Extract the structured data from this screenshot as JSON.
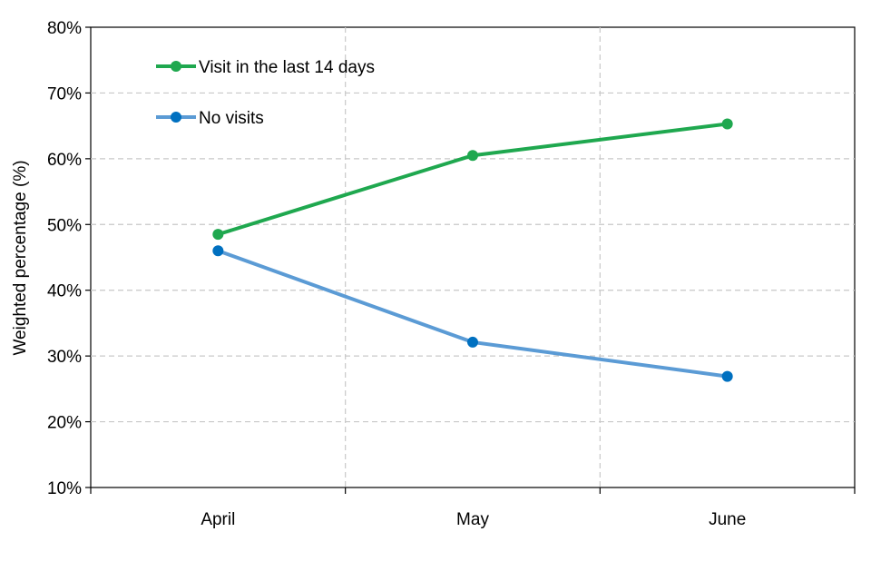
{
  "chart_data": {
    "type": "line",
    "categories": [
      "April",
      "May",
      "June"
    ],
    "series": [
      {
        "name": "Visit in the last 14 days",
        "values": [
          48.5,
          60.5,
          65.3
        ],
        "color": "#1fa84f"
      },
      {
        "name": "No visits",
        "values": [
          46.0,
          32.1,
          26.9
        ],
        "color": "#5b9bd5",
        "marker_color": "#0070c0"
      }
    ],
    "ylabel": "Weighted percentage (%)",
    "xlabel": "",
    "ylim": [
      10,
      80
    ],
    "yticks": [
      "10%",
      "20%",
      "30%",
      "40%",
      "50%",
      "60%",
      "70%",
      "80%"
    ],
    "ytick_values": [
      10,
      20,
      30,
      40,
      50,
      60,
      70,
      80
    ],
    "grid": true,
    "legend_position": "top-left"
  }
}
